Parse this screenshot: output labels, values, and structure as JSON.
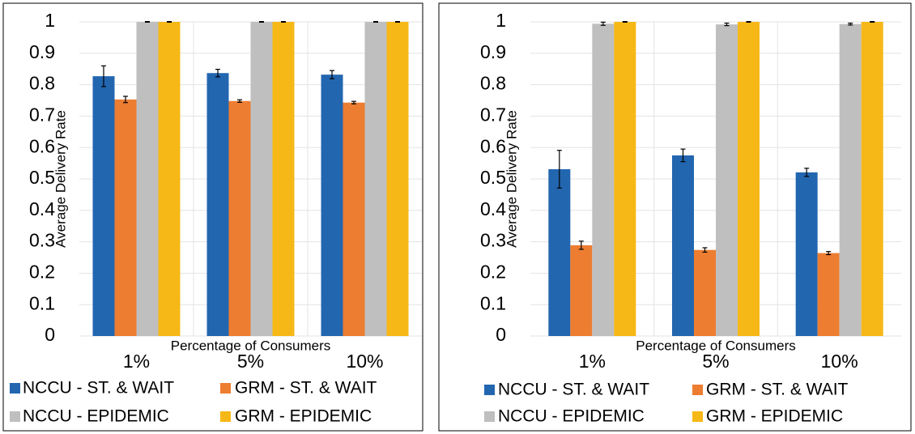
{
  "chart_data": [
    {
      "type": "bar",
      "y_label": "Average Delivery Rate",
      "x_label": "Percentage of Consumers",
      "categories": [
        "1%",
        "5%",
        "10%"
      ],
      "ylim": [
        0,
        1
      ],
      "yticks": [
        0,
        0.1,
        0.2,
        0.3,
        0.4,
        0.5,
        0.6,
        0.7,
        0.8,
        0.9,
        1
      ],
      "grid": true,
      "series": [
        {
          "name": "NCCU - ST. & WAIT",
          "color": "#2266b0",
          "values": [
            0.827,
            0.837,
            0.832
          ],
          "errors": [
            0.033,
            0.012,
            0.013
          ]
        },
        {
          "name": "GRM - ST. & WAIT",
          "color": "#ed7d31",
          "values": [
            0.753,
            0.748,
            0.743
          ],
          "errors": [
            0.01,
            0.004,
            0.004
          ]
        },
        {
          "name": "NCCU - EPIDEMIC",
          "color": "#bfbfbf",
          "values": [
            1,
            1,
            1
          ],
          "errors": [
            0.001,
            0.001,
            0.001
          ]
        },
        {
          "name": "GRM - EPIDEMIC",
          "color": "#f6b817",
          "values": [
            1,
            1,
            1
          ],
          "errors": [
            0.001,
            0.001,
            0.001
          ]
        }
      ]
    },
    {
      "type": "bar",
      "y_label": "Average Delivery Rate",
      "x_label": "Percentage of Consumers",
      "categories": [
        "1%",
        "5%",
        "10%"
      ],
      "ylim": [
        0,
        1
      ],
      "yticks": [
        0,
        0.1,
        0.2,
        0.3,
        0.4,
        0.5,
        0.6,
        0.7,
        0.8,
        0.9,
        1
      ],
      "grid": true,
      "series": [
        {
          "name": "NCCU - ST. & WAIT",
          "color": "#2266b0",
          "values": [
            0.531,
            0.575,
            0.521
          ],
          "errors": [
            0.06,
            0.02,
            0.013
          ]
        },
        {
          "name": "GRM - ST. & WAIT",
          "color": "#ed7d31",
          "values": [
            0.289,
            0.274,
            0.264
          ],
          "errors": [
            0.013,
            0.007,
            0.005
          ]
        },
        {
          "name": "NCCU - EPIDEMIC",
          "color": "#bfbfbf",
          "values": [
            0.994,
            0.992,
            0.993
          ],
          "errors": [
            0.005,
            0.004,
            0.003
          ]
        },
        {
          "name": "GRM - EPIDEMIC",
          "color": "#f6b817",
          "values": [
            1,
            1,
            1
          ],
          "errors": [
            0.001,
            0.001,
            0.001
          ]
        }
      ]
    }
  ]
}
